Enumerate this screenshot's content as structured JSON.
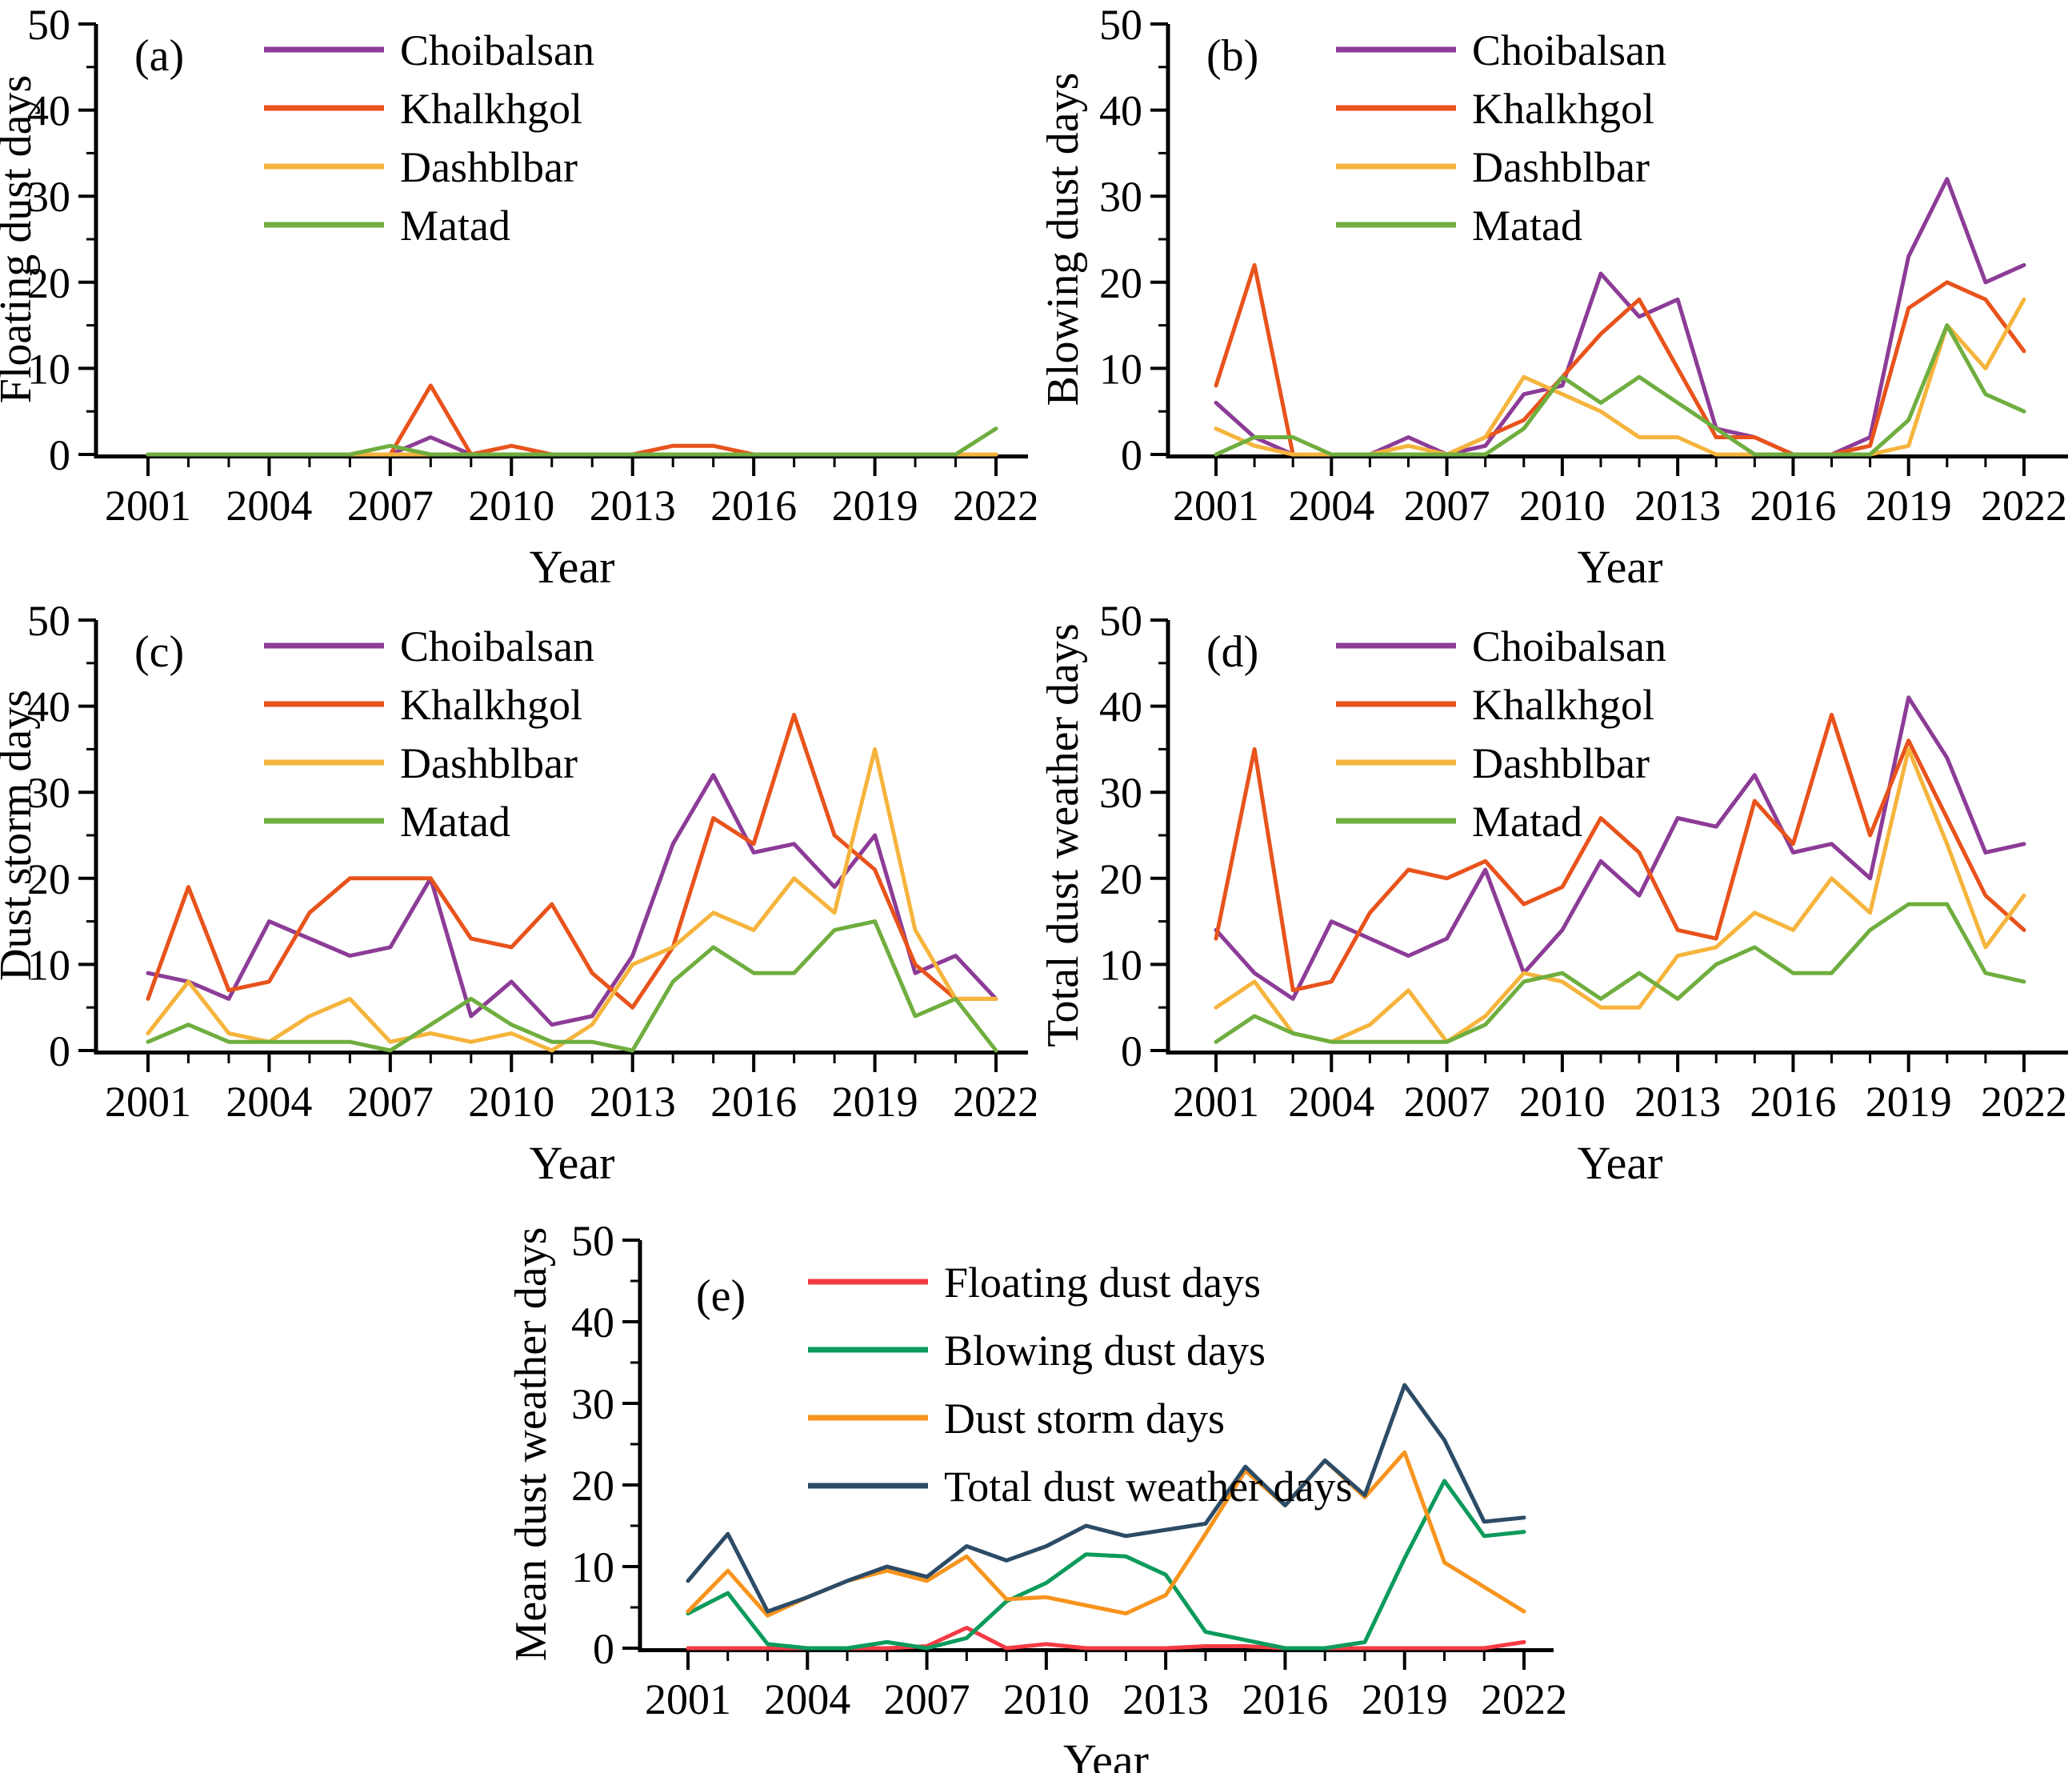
{
  "figure": {
    "background": "#ffffff",
    "axis_color": "#000000",
    "x_axis_label": "Year",
    "years": [
      2001,
      2002,
      2003,
      2004,
      2005,
      2006,
      2007,
      2008,
      2009,
      2010,
      2011,
      2012,
      2013,
      2014,
      2015,
      2016,
      2017,
      2018,
      2019,
      2020,
      2021,
      2022
    ],
    "x_major_ticks": [
      2001,
      2004,
      2007,
      2010,
      2013,
      2016,
      2019,
      2022
    ],
    "y_major_ticks": [
      0,
      10,
      20,
      30,
      40,
      50
    ],
    "y_minor_step": 5
  },
  "colors": {
    "choibalsan": "#8C3C97",
    "khalkhgol": "#E8531C",
    "dashblbar": "#F5B43C",
    "matad": "#6FAE3F",
    "floating": "#F43B44",
    "blowing": "#0C9B5C",
    "dust_storm": "#F7941E",
    "total": "#2C4B66"
  },
  "chart_data": [
    {
      "type": "line",
      "panel_label": "(a)",
      "ylabel": "Floating dust days",
      "xlabel": "Year",
      "ylim": [
        0,
        50
      ],
      "grid": false,
      "legend_position": "top-left-inside",
      "x": [
        2001,
        2002,
        2003,
        2004,
        2005,
        2006,
        2007,
        2008,
        2009,
        2010,
        2011,
        2012,
        2013,
        2014,
        2015,
        2016,
        2017,
        2018,
        2019,
        2020,
        2021,
        2022
      ],
      "series": [
        {
          "name": "Choibalsan",
          "color": "choibalsan",
          "values": [
            0,
            0,
            0,
            0,
            0,
            0,
            0,
            2,
            0,
            0,
            0,
            0,
            0,
            0,
            0,
            0,
            0,
            0,
            0,
            0,
            0,
            0
          ]
        },
        {
          "name": "Khalkhgol",
          "color": "khalkhgol",
          "values": [
            0,
            0,
            0,
            0,
            0,
            0,
            0,
            8,
            0,
            1,
            0,
            0,
            0,
            1,
            1,
            0,
            0,
            0,
            0,
            0,
            0,
            0
          ]
        },
        {
          "name": "Dashblbar",
          "color": "dashblbar",
          "values": [
            0,
            0,
            0,
            0,
            0,
            0,
            0,
            0,
            0,
            0,
            0,
            0,
            0,
            0,
            0,
            0,
            0,
            0,
            0,
            0,
            0,
            0
          ]
        },
        {
          "name": "Matad",
          "color": "matad",
          "values": [
            0,
            0,
            0,
            0,
            0,
            0,
            1,
            0,
            0,
            0,
            0,
            0,
            0,
            0,
            0,
            0,
            0,
            0,
            0,
            0,
            0,
            3
          ]
        }
      ]
    },
    {
      "type": "line",
      "panel_label": "(b)",
      "ylabel": "Blowing dust days",
      "xlabel": "Year",
      "ylim": [
        0,
        50
      ],
      "grid": false,
      "legend_position": "top-left-inside",
      "x": [
        2001,
        2002,
        2003,
        2004,
        2005,
        2006,
        2007,
        2008,
        2009,
        2010,
        2011,
        2012,
        2013,
        2014,
        2015,
        2016,
        2017,
        2018,
        2019,
        2020,
        2021,
        2022
      ],
      "series": [
        {
          "name": "Choibalsan",
          "color": "choibalsan",
          "values": [
            6,
            2,
            0,
            0,
            0,
            2,
            0,
            1,
            7,
            8,
            21,
            16,
            18,
            3,
            2,
            0,
            0,
            2,
            23,
            32,
            20,
            22
          ]
        },
        {
          "name": "Khalkhgol",
          "color": "khalkhgol",
          "values": [
            8,
            22,
            0,
            0,
            0,
            0,
            0,
            2,
            4,
            9,
            14,
            18,
            10,
            2,
            2,
            0,
            0,
            1,
            17,
            20,
            18,
            12
          ]
        },
        {
          "name": "Dashblbar",
          "color": "dashblbar",
          "values": [
            3,
            1,
            0,
            0,
            0,
            1,
            0,
            2,
            9,
            7,
            5,
            2,
            2,
            0,
            0,
            0,
            0,
            0,
            1,
            15,
            10,
            18
          ]
        },
        {
          "name": "Matad",
          "color": "matad",
          "values": [
            0,
            2,
            2,
            0,
            0,
            0,
            0,
            0,
            3,
            9,
            6,
            9,
            6,
            3,
            0,
            0,
            0,
            0,
            4,
            15,
            7,
            5
          ]
        }
      ]
    },
    {
      "type": "line",
      "panel_label": "(c)",
      "ylabel": "Dust storm days",
      "xlabel": "Year",
      "ylim": [
        0,
        50
      ],
      "grid": false,
      "legend_position": "top-left-inside",
      "x": [
        2001,
        2002,
        2003,
        2004,
        2005,
        2006,
        2007,
        2008,
        2009,
        2010,
        2011,
        2012,
        2013,
        2014,
        2015,
        2016,
        2017,
        2018,
        2019,
        2020,
        2021,
        2022
      ],
      "series": [
        {
          "name": "Choibalsan",
          "color": "choibalsan",
          "values": [
            9,
            8,
            6,
            15,
            13,
            11,
            12,
            20,
            4,
            8,
            3,
            4,
            11,
            24,
            32,
            23,
            24,
            19,
            25,
            9,
            11,
            6
          ]
        },
        {
          "name": "Khalkhgol",
          "color": "khalkhgol",
          "values": [
            6,
            19,
            7,
            8,
            16,
            20,
            20,
            20,
            13,
            12,
            17,
            9,
            5,
            12,
            27,
            24,
            39,
            25,
            21,
            10,
            6,
            6
          ]
        },
        {
          "name": "Dashblbar",
          "color": "dashblbar",
          "values": [
            2,
            8,
            2,
            1,
            4,
            6,
            1,
            2,
            1,
            2,
            0,
            3,
            10,
            12,
            16,
            14,
            20,
            16,
            35,
            14,
            6,
            6
          ]
        },
        {
          "name": "Matad",
          "color": "matad",
          "values": [
            1,
            3,
            1,
            1,
            1,
            1,
            0,
            3,
            6,
            3,
            1,
            1,
            0,
            8,
            12,
            9,
            9,
            14,
            15,
            4,
            6,
            0
          ]
        }
      ]
    },
    {
      "type": "line",
      "panel_label": "(d)",
      "ylabel": "Total dust weather days",
      "xlabel": "Year",
      "ylim": [
        0,
        50
      ],
      "grid": false,
      "legend_position": "top-left-inside",
      "x": [
        2001,
        2002,
        2003,
        2004,
        2005,
        2006,
        2007,
        2008,
        2009,
        2010,
        2011,
        2012,
        2013,
        2014,
        2015,
        2016,
        2017,
        2018,
        2019,
        2020,
        2021,
        2022
      ],
      "series": [
        {
          "name": "Choibalsan",
          "color": "choibalsan",
          "values": [
            14,
            9,
            6,
            15,
            13,
            11,
            13,
            21,
            9,
            14,
            22,
            18,
            27,
            26,
            32,
            23,
            24,
            20,
            41,
            34,
            23,
            24
          ]
        },
        {
          "name": "Khalkhgol",
          "color": "khalkhgol",
          "values": [
            13,
            35,
            7,
            8,
            16,
            21,
            20,
            22,
            17,
            19,
            27,
            23,
            14,
            13,
            29,
            24,
            39,
            25,
            36,
            27,
            18,
            14
          ]
        },
        {
          "name": "Dashblbar",
          "color": "dashblbar",
          "values": [
            5,
            8,
            2,
            1,
            3,
            7,
            1,
            4,
            9,
            8,
            5,
            5,
            11,
            12,
            16,
            14,
            20,
            16,
            35,
            24,
            12,
            18
          ]
        },
        {
          "name": "Matad",
          "color": "matad",
          "values": [
            1,
            4,
            2,
            1,
            1,
            1,
            1,
            3,
            8,
            9,
            6,
            9,
            6,
            10,
            12,
            9,
            9,
            14,
            17,
            17,
            9,
            8
          ]
        }
      ]
    },
    {
      "type": "line",
      "panel_label": "(e)",
      "ylabel": "Mean dust weather days",
      "xlabel": "Year",
      "ylim": [
        0,
        50
      ],
      "grid": false,
      "legend_position": "top-left-inside",
      "x": [
        2001,
        2002,
        2003,
        2004,
        2005,
        2006,
        2007,
        2008,
        2009,
        2010,
        2011,
        2012,
        2013,
        2014,
        2015,
        2016,
        2017,
        2018,
        2019,
        2020,
        2021,
        2022
      ],
      "series": [
        {
          "name": "Floating dust days",
          "color": "floating",
          "values": [
            0,
            0,
            0,
            0,
            0,
            0,
            0.25,
            2.5,
            0,
            0.5,
            0,
            0,
            0,
            0.25,
            0.25,
            0,
            0,
            0,
            0,
            0,
            0,
            0.75
          ]
        },
        {
          "name": "Blowing dust days",
          "color": "blowing",
          "values": [
            4.25,
            6.75,
            0.5,
            0,
            0,
            0.75,
            0,
            1.25,
            5.75,
            8,
            11.5,
            11.25,
            9,
            2,
            1,
            0,
            0,
            0.75,
            11,
            20.5,
            13.75,
            14.25
          ]
        },
        {
          "name": "Dust storm days",
          "color": "dust_storm",
          "values": [
            4.5,
            9.5,
            4,
            6.25,
            8.25,
            9.5,
            8.25,
            11.25,
            6,
            6.25,
            5.25,
            4.25,
            6.5,
            14,
            21.75,
            17.5,
            23,
            18.5,
            24,
            10.5,
            7.5,
            4.5
          ]
        },
        {
          "name": "Total dust weather days",
          "color": "total",
          "values": [
            8.25,
            14,
            4.5,
            6.25,
            8.25,
            10,
            8.75,
            12.5,
            10.75,
            12.5,
            15,
            13.75,
            14.5,
            15.25,
            22.25,
            17.5,
            23,
            18.75,
            32.25,
            25.5,
            15.5,
            16
          ]
        }
      ]
    }
  ]
}
